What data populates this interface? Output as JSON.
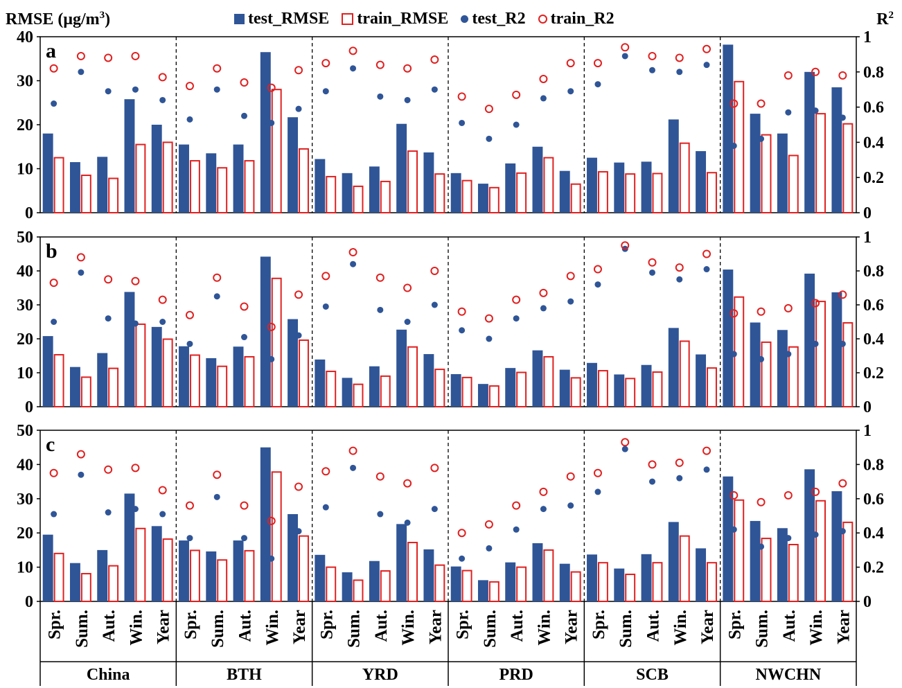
{
  "y_left_label_main": "RMSE (μg/m",
  "y_left_label_sup": "3",
  "y_left_label_close": ")",
  "y_right_label_main": "R",
  "y_right_label_sup": "2",
  "colors": {
    "test_bar": "#2f5597",
    "train_bar": "#e02020"
  },
  "legend": [
    {
      "label": "test_RMSE",
      "style": "solid-square"
    },
    {
      "label": "train_RMSE",
      "style": "open-square"
    },
    {
      "label": "test_R2",
      "style": "solid-dot"
    },
    {
      "label": "train_R2",
      "style": "open-dot"
    }
  ],
  "chart_data": [
    {
      "type": "bar",
      "panel": "a",
      "regions": [
        "China",
        "BTH",
        "YRD",
        "PRD",
        "SCB",
        "NWCHN"
      ],
      "categories": [
        "Spr.",
        "Sum.",
        "Aut.",
        "Win.",
        "Year"
      ],
      "ylim": [
        0,
        40
      ],
      "yticks": [
        0,
        10,
        20,
        30,
        40
      ],
      "y2lim": [
        0,
        1
      ],
      "y2ticks": [
        "0",
        "0.2",
        "0.4",
        "0.6",
        "0.8",
        "1"
      ],
      "test_RMSE": [
        [
          18.0,
          11.5,
          12.7,
          25.8,
          20.0
        ],
        [
          15.5,
          13.5,
          15.5,
          36.5,
          21.7
        ],
        [
          12.2,
          9.0,
          10.5,
          20.2,
          13.7
        ],
        [
          9.0,
          6.6,
          11.2,
          15.0,
          9.5
        ],
        [
          12.5,
          11.4,
          11.6,
          21.2,
          14.0
        ],
        [
          38.2,
          22.5,
          18.0,
          32.0,
          28.5
        ]
      ],
      "train_RMSE": [
        [
          12.5,
          8.5,
          7.8,
          15.5,
          16.0
        ],
        [
          11.8,
          10.2,
          11.8,
          28.0,
          14.5
        ],
        [
          8.2,
          6.0,
          7.1,
          14.0,
          8.8
        ],
        [
          7.3,
          5.7,
          9.0,
          12.5,
          6.5
        ],
        [
          9.3,
          8.8,
          8.9,
          15.8,
          9.1
        ],
        [
          29.8,
          17.7,
          13.0,
          22.5,
          20.2
        ]
      ],
      "test_R2": [
        [
          0.62,
          0.8,
          0.69,
          0.7,
          0.64
        ],
        [
          0.53,
          0.7,
          0.55,
          0.51,
          0.59
        ],
        [
          0.69,
          0.82,
          0.66,
          0.64,
          0.7
        ],
        [
          0.51,
          0.42,
          0.5,
          0.65,
          0.69
        ],
        [
          0.73,
          0.89,
          0.81,
          0.8,
          0.84
        ],
        [
          0.38,
          0.42,
          0.57,
          0.58,
          0.54
        ]
      ],
      "train_R2": [
        [
          0.82,
          0.89,
          0.88,
          0.89,
          0.77
        ],
        [
          0.72,
          0.82,
          0.74,
          0.71,
          0.81
        ],
        [
          0.85,
          0.92,
          0.84,
          0.82,
          0.87
        ],
        [
          0.66,
          0.59,
          0.67,
          0.76,
          0.85
        ],
        [
          0.85,
          0.94,
          0.89,
          0.88,
          0.93
        ],
        [
          0.62,
          0.62,
          0.78,
          0.8,
          0.78
        ]
      ]
    },
    {
      "type": "bar",
      "panel": "b",
      "regions": [
        "China",
        "BTH",
        "YRD",
        "PRD",
        "SCB",
        "NWCHN"
      ],
      "categories": [
        "Spr.",
        "Sum.",
        "Aut.",
        "Win.",
        "Year"
      ],
      "ylim": [
        0,
        50
      ],
      "yticks": [
        0,
        10,
        20,
        30,
        40,
        50
      ],
      "y2lim": [
        0,
        1
      ],
      "y2ticks": [
        "0",
        "0.2",
        "0.4",
        "0.6",
        "0.8",
        "1"
      ],
      "test_RMSE": [
        [
          20.8,
          11.7,
          15.8,
          33.8,
          23.5
        ],
        [
          17.8,
          14.3,
          17.7,
          44.2,
          25.8
        ],
        [
          13.9,
          8.5,
          11.9,
          22.7,
          15.5
        ],
        [
          9.6,
          6.7,
          11.4,
          16.6,
          10.9
        ],
        [
          12.9,
          9.5,
          12.3,
          23.2,
          15.4
        ],
        [
          40.4,
          24.8,
          22.6,
          39.2,
          33.7
        ]
      ],
      "train_RMSE": [
        [
          15.3,
          8.7,
          11.3,
          24.3,
          19.9
        ],
        [
          15.2,
          11.9,
          14.7,
          37.8,
          19.6
        ],
        [
          10.4,
          6.6,
          9.0,
          17.6,
          11.0
        ],
        [
          8.6,
          6.1,
          10.1,
          14.7,
          8.5
        ],
        [
          10.6,
          8.3,
          10.2,
          19.3,
          11.4
        ],
        [
          32.3,
          19.0,
          17.6,
          31.0,
          24.7
        ]
      ],
      "test_R2": [
        [
          0.5,
          0.79,
          0.52,
          0.49,
          0.5
        ],
        [
          0.37,
          0.65,
          0.41,
          0.28,
          0.42
        ],
        [
          0.59,
          0.84,
          0.57,
          0.5,
          0.6
        ],
        [
          0.45,
          0.4,
          0.52,
          0.58,
          0.62
        ],
        [
          0.72,
          0.93,
          0.79,
          0.75,
          0.81
        ],
        [
          0.31,
          0.28,
          0.31,
          0.37,
          0.37
        ]
      ],
      "train_R2": [
        [
          0.73,
          0.88,
          0.75,
          0.74,
          0.63
        ],
        [
          0.54,
          0.76,
          0.59,
          0.47,
          0.66
        ],
        [
          0.77,
          0.91,
          0.76,
          0.7,
          0.8
        ],
        [
          0.56,
          0.52,
          0.63,
          0.67,
          0.77
        ],
        [
          0.81,
          0.95,
          0.85,
          0.82,
          0.9
        ],
        [
          0.55,
          0.56,
          0.58,
          0.61,
          0.66
        ]
      ]
    },
    {
      "type": "bar",
      "panel": "c",
      "regions": [
        "China",
        "BTH",
        "YRD",
        "PRD",
        "SCB",
        "NWCHN"
      ],
      "categories": [
        "Spr.",
        "Sum.",
        "Aut.",
        "Win.",
        "Year"
      ],
      "ylim": [
        0,
        50
      ],
      "yticks": [
        0,
        10,
        20,
        30,
        40,
        50
      ],
      "y2lim": [
        0,
        1
      ],
      "y2ticks": [
        "0",
        "0.2",
        "0.4",
        "0.6",
        "0.8",
        "1"
      ],
      "test_RMSE": [
        [
          19.5,
          11.2,
          15.0,
          31.5,
          22.0
        ],
        [
          17.8,
          14.6,
          17.8,
          45.0,
          25.5
        ],
        [
          13.6,
          8.5,
          11.8,
          22.6,
          15.2
        ],
        [
          10.2,
          6.2,
          11.4,
          17.0,
          11.0
        ],
        [
          13.7,
          9.6,
          13.8,
          23.2,
          15.5
        ],
        [
          36.5,
          23.5,
          21.4,
          38.6,
          32.2
        ]
      ],
      "train_RMSE": [
        [
          14.0,
          8.1,
          10.4,
          21.3,
          18.2
        ],
        [
          14.9,
          12.1,
          14.8,
          37.8,
          19.1
        ],
        [
          10.0,
          6.2,
          8.9,
          17.2,
          10.6
        ],
        [
          9.0,
          5.7,
          10.0,
          15.0,
          8.6
        ],
        [
          11.3,
          7.9,
          11.3,
          19.1,
          11.3
        ],
        [
          29.6,
          18.4,
          16.6,
          29.4,
          23.1
        ]
      ],
      "test_R2": [
        [
          0.51,
          0.74,
          0.52,
          0.54,
          0.51
        ],
        [
          0.37,
          0.61,
          0.37,
          0.25,
          0.41
        ],
        [
          0.55,
          0.78,
          0.51,
          0.46,
          0.54
        ],
        [
          0.25,
          0.31,
          0.42,
          0.54,
          0.56
        ],
        [
          0.64,
          0.89,
          0.7,
          0.72,
          0.77
        ],
        [
          0.42,
          0.32,
          0.37,
          0.39,
          0.41
        ]
      ],
      "train_R2": [
        [
          0.75,
          0.86,
          0.77,
          0.78,
          0.65
        ],
        [
          0.56,
          0.74,
          0.56,
          0.47,
          0.67
        ],
        [
          0.76,
          0.88,
          0.73,
          0.69,
          0.78
        ],
        [
          0.4,
          0.45,
          0.56,
          0.64,
          0.73
        ],
        [
          0.75,
          0.93,
          0.8,
          0.81,
          0.88
        ],
        [
          0.62,
          0.58,
          0.62,
          0.64,
          0.69
        ]
      ]
    }
  ]
}
